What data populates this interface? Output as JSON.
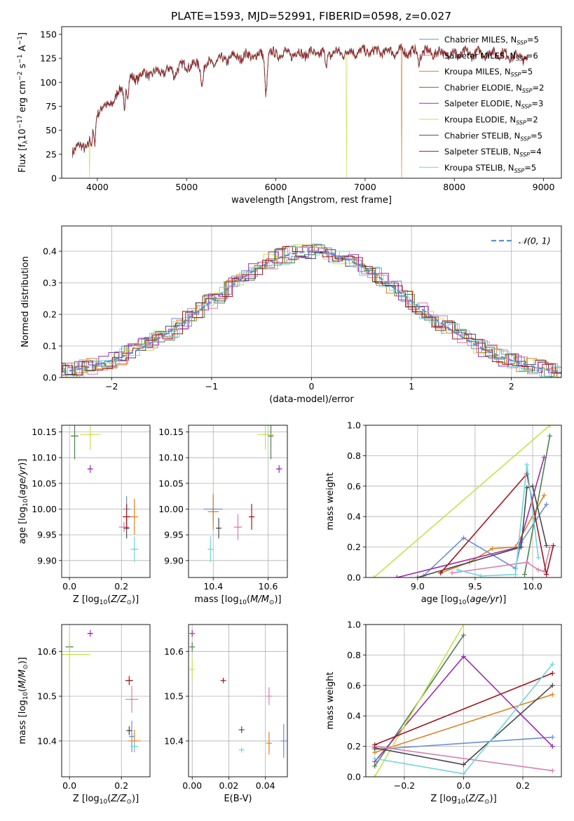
{
  "title": "PLATE=1593, MJD=52991, FIBERID=0598, z=0.027",
  "colors": [
    "#6a8fd6",
    "#e0801f",
    "#4e7f4e",
    "#9a2fb0",
    "#c8e04e",
    "#d680b0",
    "#4a4a4a",
    "#a0181e",
    "#6fd6dc"
  ],
  "series_names": [
    {
      "base": "Chabrier MILES, N",
      "sub": "SSP",
      "eq": "=5",
      "color": "#6a8fd6"
    },
    {
      "base": "Salpeter MILES, N",
      "sub": "SSP",
      "eq": "=6",
      "color": "#d680b0"
    },
    {
      "base": "Kroupa MILES, N",
      "sub": "SSP",
      "eq": "=5",
      "color": "#e0801f"
    },
    {
      "base": "Chabrier ELODIE, N",
      "sub": "SSP",
      "eq": "=2",
      "color": "#4e7f4e"
    },
    {
      "base": "Salpeter ELODIE, N",
      "sub": "SSP",
      "eq": "=3",
      "color": "#9a2fb0"
    },
    {
      "base": "Kroupa ELODIE, N",
      "sub": "SSP",
      "eq": "=2",
      "color": "#c8e04e"
    },
    {
      "base": "Chabrier STELIB, N",
      "sub": "SSP",
      "eq": "=5",
      "color": "#4a4a4a"
    },
    {
      "base": "Salpeter STELIB, N",
      "sub": "SSP",
      "eq": "=4",
      "color": "#a0181e"
    },
    {
      "base": "Kroupa STELIB, N",
      "sub": "SSP",
      "eq": "=5",
      "color": "#6fd6dc"
    }
  ],
  "chart_data": [
    {
      "id": "spectrum",
      "type": "line",
      "xlabel": "wavelength [Angstrom, rest frame]",
      "ylabel": "Flux [fλ10⁻¹⁷ erg cm⁻² s⁻¹ A⁻¹]",
      "xlim": [
        3600,
        9200
      ],
      "ylim": [
        0,
        158
      ],
      "xticks": [
        4000,
        5000,
        6000,
        7000,
        8000,
        9000
      ],
      "yticks": [
        0,
        25,
        50,
        75,
        100,
        125,
        150
      ],
      "grid": false,
      "legend": "right",
      "x_range": [
        3720,
        8820
      ],
      "envelope": [
        [
          3720,
          30
        ],
        [
          3900,
          35
        ],
        [
          4000,
          70
        ],
        [
          4200,
          82
        ],
        [
          4300,
          100
        ],
        [
          4500,
          108
        ],
        [
          4800,
          112
        ],
        [
          5000,
          118
        ],
        [
          5200,
          118
        ],
        [
          5500,
          126
        ],
        [
          6000,
          130
        ],
        [
          6500,
          130
        ],
        [
          7000,
          132
        ],
        [
          7500,
          132
        ],
        [
          8000,
          130
        ],
        [
          8500,
          130
        ],
        [
          8820,
          125
        ]
      ],
      "dips": [
        [
          3934,
          32
        ],
        [
          3968,
          35
        ],
        [
          4101,
          74
        ],
        [
          4304,
          70
        ],
        [
          4340,
          85
        ],
        [
          4861,
          108
        ],
        [
          5175,
          100
        ],
        [
          5890,
          90
        ],
        [
          6563,
          118
        ],
        [
          7600,
          122
        ]
      ],
      "dropouts": [
        {
          "x": 3910,
          "series": "Kroupa ELODIE"
        },
        {
          "x": 6790,
          "series": "Kroupa ELODIE"
        },
        {
          "x": 7410,
          "series": "Kroupa MILES"
        }
      ]
    },
    {
      "id": "residual_hist",
      "type": "line",
      "xlabel": "(data-model)/error",
      "ylabel": "Normed distribution",
      "xlim": [
        -2.5,
        2.5
      ],
      "ylim": [
        0,
        0.48
      ],
      "xticks": [
        -2,
        -1,
        0,
        1,
        2
      ],
      "yticks": [
        0.0,
        0.1,
        0.2,
        0.3,
        0.4
      ],
      "grid": true,
      "legend": "top-right",
      "legend_label": "𝒩(0, 1)",
      "curve": {
        "mu": 0,
        "sigma": 1,
        "color": "#5a8ed6"
      },
      "bin_width": 0.1
    },
    {
      "id": "age_vs_Z",
      "type": "scatter",
      "xlabel": "Z [log10(Z/Z⊙)]",
      "ylabel": "age  [log10(age/yr)]",
      "xlim": [
        -0.03,
        0.31
      ],
      "ylim": [
        9.867,
        10.163
      ],
      "xticks": [
        0.0,
        0.2
      ],
      "yticks": [
        9.9,
        9.95,
        10.0,
        10.05,
        10.1,
        10.15
      ],
      "grid": true,
      "points": [
        {
          "x": 0.22,
          "y": 10.0,
          "xe": 0.03,
          "ye": 0.05,
          "c": 0
        },
        {
          "x": 0.25,
          "y": 9.985,
          "xe": 0.03,
          "ye": 0.07,
          "c": 1
        },
        {
          "x": 0.02,
          "y": 10.142,
          "xe": 0.03,
          "ye": 0.09,
          "c": 2
        },
        {
          "x": 0.08,
          "y": 10.078,
          "xe": 0.02,
          "ye": 0.015,
          "c": 3
        },
        {
          "x": 0.08,
          "y": 10.145,
          "xe": 0.08,
          "ye": 0.06,
          "c": 4
        },
        {
          "x": 0.21,
          "y": 9.965,
          "xe": 0.04,
          "ye": 0.02,
          "c": 5
        },
        {
          "x": 0.22,
          "y": 9.963,
          "xe": 0.02,
          "ye": 0.04,
          "c": 6
        },
        {
          "x": 0.22,
          "y": 9.985,
          "xe": 0.03,
          "ye": 0.05,
          "c": 7
        },
        {
          "x": 0.25,
          "y": 9.922,
          "xe": 0.03,
          "ye": 0.05,
          "c": 8
        }
      ]
    },
    {
      "id": "age_vs_mass",
      "type": "scatter",
      "xlabel": "mass [log10(M/M⊙)]",
      "ylabel": "",
      "xlim": [
        10.31,
        10.67
      ],
      "ylim": [
        9.867,
        10.163
      ],
      "xticks": [
        10.4,
        10.6
      ],
      "yticks": [
        9.9,
        9.95,
        10.0,
        10.05,
        10.1,
        10.15
      ],
      "grid": true,
      "points": [
        {
          "x": 10.4,
          "y": 10.0,
          "xe": 0.07,
          "ye": 0.05,
          "c": 0
        },
        {
          "x": 10.4,
          "y": 9.995,
          "xe": 0.04,
          "ye": 0.07,
          "c": 1
        },
        {
          "x": 10.61,
          "y": 10.142,
          "xe": 0.02,
          "ye": 0.09,
          "c": 2
        },
        {
          "x": 10.64,
          "y": 10.078,
          "xe": 0.02,
          "ye": 0.015,
          "c": 3
        },
        {
          "x": 10.59,
          "y": 10.145,
          "xe": 0.06,
          "ye": 0.06,
          "c": 4
        },
        {
          "x": 10.49,
          "y": 9.965,
          "xe": 0.03,
          "ye": 0.05,
          "c": 5
        },
        {
          "x": 10.42,
          "y": 9.963,
          "xe": 0.015,
          "ye": 0.04,
          "c": 6
        },
        {
          "x": 10.54,
          "y": 9.985,
          "xe": 0.015,
          "ye": 0.05,
          "c": 7
        },
        {
          "x": 10.39,
          "y": 9.922,
          "xe": 0.015,
          "ye": 0.05,
          "c": 8
        }
      ]
    },
    {
      "id": "mass_weight_vs_age",
      "type": "line",
      "xlabel": "age  [log10(age/yr)]",
      "ylabel": "mass weight",
      "xlim": [
        8.55,
        10.25
      ],
      "ylim": [
        0,
        1.0
      ],
      "xticks": [
        9.0,
        9.5,
        10.0
      ],
      "yticks": [
        0.0,
        0.2,
        0.4,
        0.6,
        0.8,
        1.0
      ],
      "grid": true,
      "series": [
        {
          "c": 0,
          "x": [
            9.05,
            9.4,
            9.85,
            9.9,
            10.12
          ],
          "y": [
            0.01,
            0.26,
            0.06,
            0.23,
            0.48
          ]
        },
        {
          "c": 1,
          "x": [
            9.2,
            9.45,
            9.65,
            9.85,
            10.1
          ],
          "y": [
            0.03,
            0.1,
            0.19,
            0.2,
            0.54
          ]
        },
        {
          "c": 2,
          "x": [
            9.93,
            10.15
          ],
          "y": [
            0.02,
            0.93
          ]
        },
        {
          "c": 3,
          "x": [
            8.82,
            9.88,
            10.1
          ],
          "y": [
            0.0,
            0.2,
            0.79
          ]
        },
        {
          "c": 4,
          "x": [
            8.62,
            10.15
          ],
          "y": [
            0.0,
            1.0
          ]
        },
        {
          "c": 5,
          "x": [
            9.3,
            9.95,
            10.05,
            10.1,
            10.15
          ],
          "y": [
            0.03,
            0.1,
            0.05,
            0.04,
            0.2
          ]
        },
        {
          "c": 6,
          "x": [
            9.0,
            9.9,
            9.95,
            10.0,
            10.12
          ],
          "y": [
            0.0,
            0.2,
            0.59,
            0.6,
            0.21
          ]
        },
        {
          "c": 7,
          "x": [
            9.2,
            9.95,
            10.12,
            10.18
          ],
          "y": [
            0.03,
            0.68,
            0.02,
            0.21
          ]
        },
        {
          "c": 8,
          "x": [
            9.35,
            9.55,
            9.85,
            9.95,
            10.05
          ],
          "y": [
            0.05,
            0.01,
            0.02,
            0.74,
            0.13
          ]
        }
      ]
    },
    {
      "id": "mass_vs_Z",
      "type": "scatter",
      "xlabel": "Z [log10(Z/Z⊙)]",
      "ylabel": "mass [log10(M/M⊙)]",
      "xlim": [
        -0.03,
        0.31
      ],
      "ylim": [
        10.32,
        10.66
      ],
      "xticks": [
        0.0,
        0.2
      ],
      "yticks": [
        10.4,
        10.5,
        10.6
      ],
      "grid": true,
      "points": [
        {
          "x": 0.24,
          "y": 10.41,
          "xe": 0.02,
          "ye": 0.07,
          "c": 0
        },
        {
          "x": 0.25,
          "y": 10.4,
          "xe": 0.05,
          "ye": 0.05,
          "c": 1
        },
        {
          "x": 0.0,
          "y": 10.61,
          "xe": 0.03,
          "ye": 0.02,
          "c": 2
        },
        {
          "x": 0.08,
          "y": 10.64,
          "xe": 0.02,
          "ye": 0.015,
          "c": 3
        },
        {
          "x": 0.0,
          "y": 10.593,
          "xe": 0.16,
          "ye": 0.09,
          "c": 4
        },
        {
          "x": 0.24,
          "y": 10.493,
          "xe": 0.05,
          "ye": 0.06,
          "c": 5
        },
        {
          "x": 0.23,
          "y": 10.423,
          "xe": 0.02,
          "ye": 0.02,
          "c": 6
        },
        {
          "x": 0.23,
          "y": 10.535,
          "xe": 0.03,
          "ye": 0.02,
          "c": 7
        },
        {
          "x": 0.25,
          "y": 10.388,
          "xe": 0.03,
          "ye": 0.02,
          "c": 8
        }
      ]
    },
    {
      "id": "mass_vs_EBV",
      "type": "scatter",
      "xlabel": "E(B-V)",
      "ylabel": "",
      "xlim": [
        -0.002,
        0.052
      ],
      "ylim": [
        10.32,
        10.66
      ],
      "xticks": [
        0.0,
        0.02,
        0.04
      ],
      "yticks": [
        10.4,
        10.5,
        10.6
      ],
      "grid": true,
      "points": [
        {
          "x": 0.05,
          "y": 10.4,
          "xe": 0.0,
          "ye": 0.075,
          "c": 0
        },
        {
          "x": 0.042,
          "y": 10.395,
          "xe": 0.0,
          "ye": 0.05,
          "c": 1
        },
        {
          "x": 0.0,
          "y": 10.61,
          "xe": 0.0,
          "ye": 0.02,
          "c": 2
        },
        {
          "x": 0.0,
          "y": 10.64,
          "xe": 0.0,
          "ye": 0.015,
          "c": 3
        },
        {
          "x": 0.0,
          "y": 10.56,
          "xe": 0.0,
          "ye": 0.05,
          "c": 4
        },
        {
          "x": 0.042,
          "y": 10.5,
          "xe": 0.0,
          "ye": 0.04,
          "c": 5
        },
        {
          "x": 0.027,
          "y": 10.425,
          "xe": 0.0,
          "ye": 0.015,
          "c": 6
        },
        {
          "x": 0.017,
          "y": 10.535,
          "xe": 0.0,
          "ye": 0.012,
          "c": 7
        },
        {
          "x": 0.027,
          "y": 10.38,
          "xe": 0.0,
          "ye": 0.012,
          "c": 8
        }
      ]
    },
    {
      "id": "mass_weight_vs_Z",
      "type": "line",
      "xlabel": "Z [log10(Z/Z⊙)]",
      "ylabel": "mass weight",
      "xlim": [
        -0.33,
        0.33
      ],
      "ylim": [
        0,
        1.0
      ],
      "xticks": [
        -0.2,
        0.0,
        0.2
      ],
      "yticks": [
        0.0,
        0.2,
        0.4,
        0.6,
        0.8,
        1.0
      ],
      "grid": true,
      "series": [
        {
          "c": 0,
          "x": [
            -0.3,
            0.3
          ],
          "y": [
            0.18,
            0.26
          ]
        },
        {
          "c": 1,
          "x": [
            -0.3,
            0.3
          ],
          "y": [
            0.16,
            0.54
          ]
        },
        {
          "c": 2,
          "x": [
            -0.3,
            0.0
          ],
          "y": [
            0.07,
            0.93
          ]
        },
        {
          "c": 3,
          "x": [
            -0.3,
            0.0,
            0.3
          ],
          "y": [
            0.1,
            0.79,
            0.2
          ]
        },
        {
          "c": 4,
          "x": [
            -0.3,
            0.0
          ],
          "y": [
            0.0,
            1.0
          ]
        },
        {
          "c": 5,
          "x": [
            -0.3,
            0.3
          ],
          "y": [
            0.2,
            0.04
          ]
        },
        {
          "c": 6,
          "x": [
            -0.3,
            0.0,
            0.3
          ],
          "y": [
            0.19,
            0.08,
            0.6
          ]
        },
        {
          "c": 7,
          "x": [
            -0.3,
            0.3
          ],
          "y": [
            0.21,
            0.68
          ]
        },
        {
          "c": 8,
          "x": [
            -0.3,
            0.0,
            0.3
          ],
          "y": [
            0.12,
            0.02,
            0.74
          ]
        }
      ]
    }
  ]
}
